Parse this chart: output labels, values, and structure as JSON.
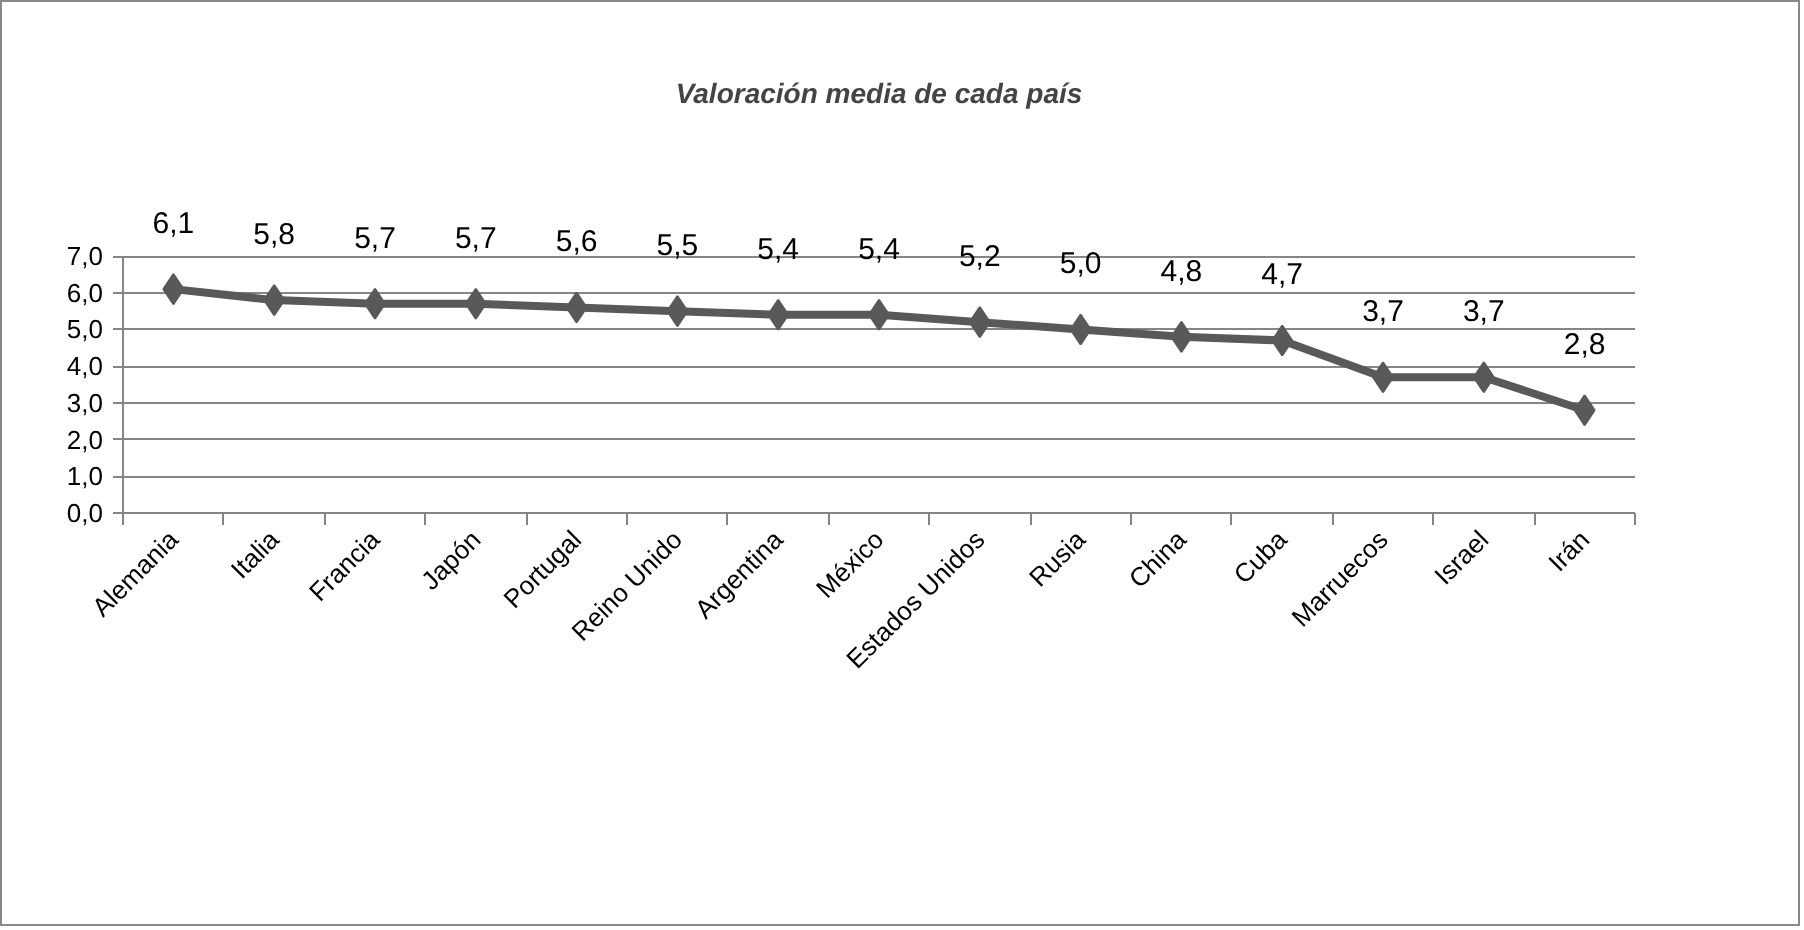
{
  "chart_data": {
    "type": "line",
    "title": "Valoración media de cada país",
    "categories": [
      "Alemania",
      "Italia",
      "Francia",
      "Japón",
      "Portugal",
      "Reino Unido",
      "Argentina",
      "México",
      "Estados Unidos",
      "Rusia",
      "China",
      "Cuba",
      "Marruecos",
      "Israel",
      "Irán"
    ],
    "series": [
      {
        "color": "#595959",
        "values": [
          6.1,
          5.8,
          5.7,
          5.7,
          5.6,
          5.5,
          5.4,
          5.4,
          5.2,
          5.0,
          4.8,
          4.7,
          3.7,
          3.7,
          2.8
        ],
        "value_labels": [
          "6,1",
          "5,8",
          "5,7",
          "5,7",
          "5,6",
          "5,5",
          "5,4",
          "5,4",
          "5,2",
          "5,0",
          "4,8",
          "4,7",
          "3,7",
          "3,7",
          "2,8"
        ]
      }
    ],
    "ylim": [
      0,
      7
    ],
    "yticks": [
      {
        "value": 0,
        "label": "0,0"
      },
      {
        "value": 1,
        "label": "1,0"
      },
      {
        "value": 2,
        "label": "2,0"
      },
      {
        "value": 3,
        "label": "3,0"
      },
      {
        "value": 4,
        "label": "4,0"
      },
      {
        "value": 5,
        "label": "5,0"
      },
      {
        "value": 6,
        "label": "6,0"
      },
      {
        "value": 7,
        "label": "7,0"
      }
    ],
    "grid": "y",
    "marker": "diamond",
    "line_style": "solid"
  }
}
